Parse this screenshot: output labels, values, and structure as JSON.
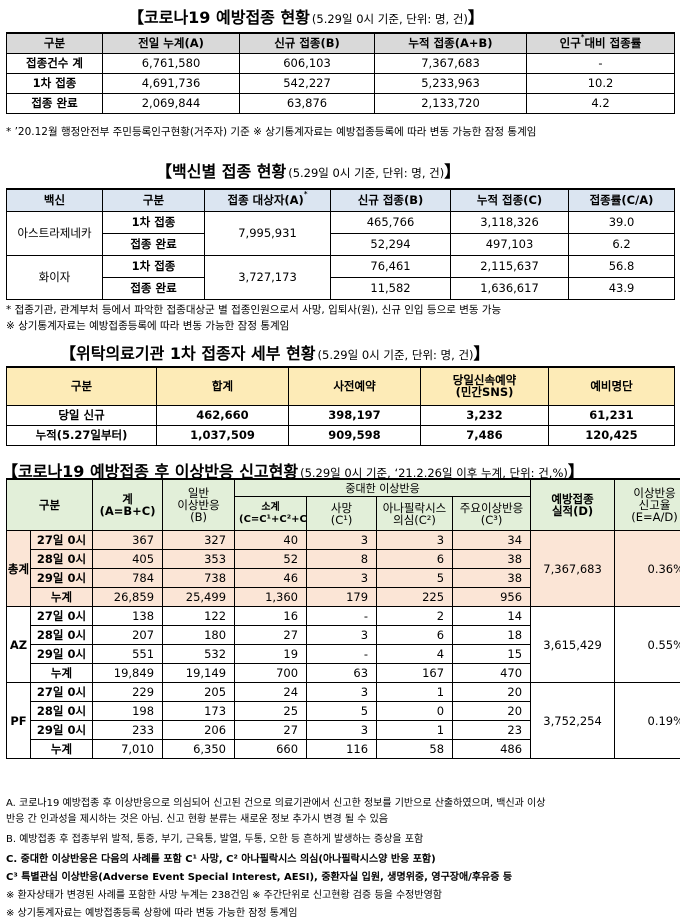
{
  "s1": {
    "title": "코로나19 예방접종 현황",
    "sub": "(5.29일 0시 기준, 단위: 명, 건)",
    "headers": [
      "구분",
      "전일 누계(A)",
      "신규 접종(B)",
      "누적 접종(A+B)",
      "인구 대비 접종률"
    ],
    "header_sup": "*",
    "rows": [
      [
        "접종건수 계",
        "6,761,580",
        "606,103",
        "7,367,683",
        "-"
      ],
      [
        "1차 접종",
        "4,691,736",
        "542,227",
        "5,233,963",
        "10.2"
      ],
      [
        "접종 완료",
        "2,069,844",
        "63,876",
        "2,133,720",
        "4.2"
      ]
    ],
    "note": "* ’20.12월 행정안전부 주민등록인구현황(거주자) 기준   ※ 상기통계자료는 예방접종등록에 따라 변동 가능한 잠정 통계임"
  },
  "s2": {
    "title": "백신별 접종 현황",
    "sub": "(5.29일 0시 기준, 단위: 명, 건)",
    "headers": [
      "백신",
      "구분",
      "접종 대상자(A)",
      "신규 접종(B)",
      "누적 접종(C)",
      "접종률(C/A)"
    ],
    "header_sup": "*",
    "groups": [
      {
        "vaccine": "아스트라제네카",
        "target": "7,995,931",
        "rows": [
          [
            "1차 접종",
            "465,766",
            "3,118,326",
            "39.0"
          ],
          [
            "접종 완료",
            "52,294",
            "497,103",
            "6.2"
          ]
        ]
      },
      {
        "vaccine": "화이자",
        "target": "3,727,173",
        "rows": [
          [
            "1차 접종",
            "76,461",
            "2,115,637",
            "56.8"
          ],
          [
            "접종 완료",
            "11,582",
            "1,636,617",
            "43.9"
          ]
        ]
      }
    ],
    "note1": "* 접종기관, 관계부처 등에서 파악한 접종대상군 별 접종인원으로서 사망, 입퇴사(원), 신규 인입 등으로 변동 가능",
    "note2": "※ 상기통계자료는 예방접종등록에 따라 변동 가능한 잠정 통계임"
  },
  "s3": {
    "title": "위탁의료기관 1차 접종자 세부 현황",
    "sub": "(5.29일 0시 기준, 단위: 명, 건)",
    "headers": [
      "구분",
      "합계",
      "사전예약",
      "당일신속예약",
      "(민간SNS)",
      "예비명단"
    ],
    "rows": [
      [
        "당일 신규",
        "462,660",
        "398,197",
        "3,232",
        "61,231"
      ],
      [
        "누적(5.27일부터)",
        "1,037,509",
        "909,598",
        "7,486",
        "120,425"
      ]
    ]
  },
  "s4": {
    "title": "코로나19 예방접종 후 이상반응 신고현황",
    "sub": "(5.29일 0시 기준, ‘21.2.26일 이후 누계, 단위: 건,%)",
    "h": {
      "gubun": "구분",
      "total1": "계",
      "total2": "(A=B+C)",
      "general1": "일반",
      "general2": "이상반응",
      "general3": "(B)",
      "serious": "중대한 이상반응",
      "subtotal1": "소계",
      "subtotal2": "(C=C¹+C²+C³)",
      "death1": "사망",
      "death2": "(C¹)",
      "ana1": "아나필락시스",
      "ana2": "의심(C²)",
      "major1": "주요이상반응",
      "major2": "(C³)",
      "vacc1": "예방접종",
      "vacc2": "실적(D)",
      "rate1": "이상반응",
      "rate2": "신고율",
      "rate3": "(E=A/D)"
    },
    "groups": [
      {
        "name": "총계",
        "vacc": "7,367,683",
        "rate": "0.36%",
        "rows": [
          [
            "27일 0시",
            "367",
            "327",
            "40",
            "3",
            "3",
            "34"
          ],
          [
            "28일 0시",
            "405",
            "353",
            "52",
            "8",
            "6",
            "38"
          ],
          [
            "29일 0시",
            "784",
            "738",
            "46",
            "3",
            "5",
            "38"
          ],
          [
            "누계",
            "26,859",
            "25,499",
            "1,360",
            "179",
            "225",
            "956"
          ]
        ]
      },
      {
        "name": "AZ",
        "vacc": "3,615,429",
        "rate": "0.55%",
        "rows": [
          [
            "27일 0시",
            "138",
            "122",
            "16",
            "-",
            "2",
            "14"
          ],
          [
            "28일 0시",
            "207",
            "180",
            "27",
            "3",
            "6",
            "18"
          ],
          [
            "29일 0시",
            "551",
            "532",
            "19",
            "-",
            "4",
            "15"
          ],
          [
            "누계",
            "19,849",
            "19,149",
            "700",
            "63",
            "167",
            "470"
          ]
        ]
      },
      {
        "name": "PF",
        "vacc": "3,752,254",
        "rate": "0.19%",
        "rows": [
          [
            "27일 0시",
            "229",
            "205",
            "24",
            "3",
            "1",
            "20"
          ],
          [
            "28일 0시",
            "198",
            "173",
            "25",
            "5",
            "0",
            "20"
          ],
          [
            "29일 0시",
            "233",
            "206",
            "27",
            "3",
            "1",
            "23"
          ],
          [
            "누계",
            "7,010",
            "6,350",
            "660",
            "116",
            "58",
            "486"
          ]
        ]
      }
    ],
    "notes": [
      "A. 코로나19 예방접종 후 이상반응으로 의심되어 신고된 건으로 의료기관에서 신고한 정보를 기반으로 산출하였으며, 백신과 이상",
      "    반응 간 인과성을 제시하는 것은 아님. 신고 현황 분류는 새로운 정보 추가시 변경 될 수 있음",
      "B. 예방접종 후 접종부위 발적, 통증, 부기, 근육통, 발열, 두통, 오한 등 흔하게 발생하는 증상을 포함",
      "C. 중대한 이상반응은 다음의 사례를 포함  C¹ 사망, C² 아나필락시스 의심(아나필락시스양 반응 포함)",
      "C³ 특별관심 이상반응(Adverse Event Special Interest, AESI), 중환자실 입원, 생명위중, 영구장애/후유증 등",
      "※ 환자상태가 변경된 사례를 포함한 사망 누계는  238건임      ※ 주간단위로 신고현황 검증 등을 수정반영함",
      "※ 상기통계자료는 예방접종등록 상황에 따라 변동 가능한 잠정 통계임"
    ]
  }
}
